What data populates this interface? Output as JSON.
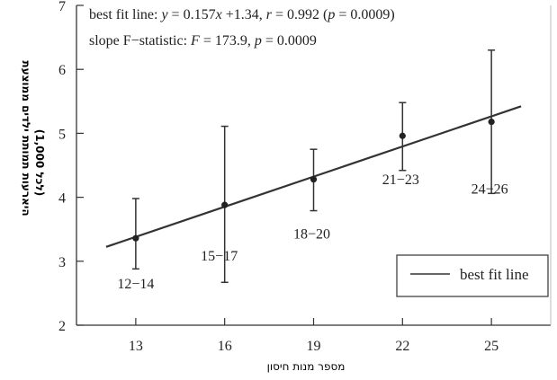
{
  "chart_data": {
    "type": "scatter",
    "title": "",
    "xlabel": "מספר מנות חיסון",
    "ylabel": "היארעות תמותת ילדים ממוצעת",
    "ylabel_unit": "(לכל 1,000)",
    "xlim": [
      11,
      27
    ],
    "ylim": [
      2,
      7
    ],
    "x_ticks": [
      13,
      16,
      19,
      22,
      25
    ],
    "y_ticks": [
      2,
      3,
      4,
      5,
      6,
      7
    ],
    "grid": false,
    "points": [
      {
        "x": 13,
        "y": 3.36,
        "err_low": 2.88,
        "err_high": 3.98,
        "label": "12−14"
      },
      {
        "x": 16,
        "y": 3.88,
        "err_low": 2.67,
        "err_high": 5.11,
        "label": "15−17"
      },
      {
        "x": 19,
        "y": 4.28,
        "err_low": 3.79,
        "err_high": 4.75,
        "label": "18−20"
      },
      {
        "x": 22,
        "y": 4.96,
        "err_low": 4.42,
        "err_high": 5.48,
        "label": "21−23"
      },
      {
        "x": 25,
        "y": 5.18,
        "err_low": 4.06,
        "err_high": 6.3,
        "label": "24−26"
      }
    ],
    "fit_line": {
      "slope": 0.157,
      "intercept": 1.34,
      "x_start": 12,
      "x_end": 26
    },
    "legend": {
      "position": "bottom-right",
      "entries": [
        "best fit line"
      ]
    },
    "annotations": {
      "line1": {
        "a": "best fit line:  ",
        "y": "y",
        "b": " = 0.157",
        "x": "x",
        "c": " +1.34, ",
        "r": "r",
        "d": " = 0.992 (",
        "p": "p",
        "e": " = 0.0009)"
      },
      "line2": {
        "a": "slope F−statistic: ",
        "F": "F",
        "b": " = 173.9, ",
        "p": "p",
        "c": " = 0.0009"
      }
    }
  }
}
